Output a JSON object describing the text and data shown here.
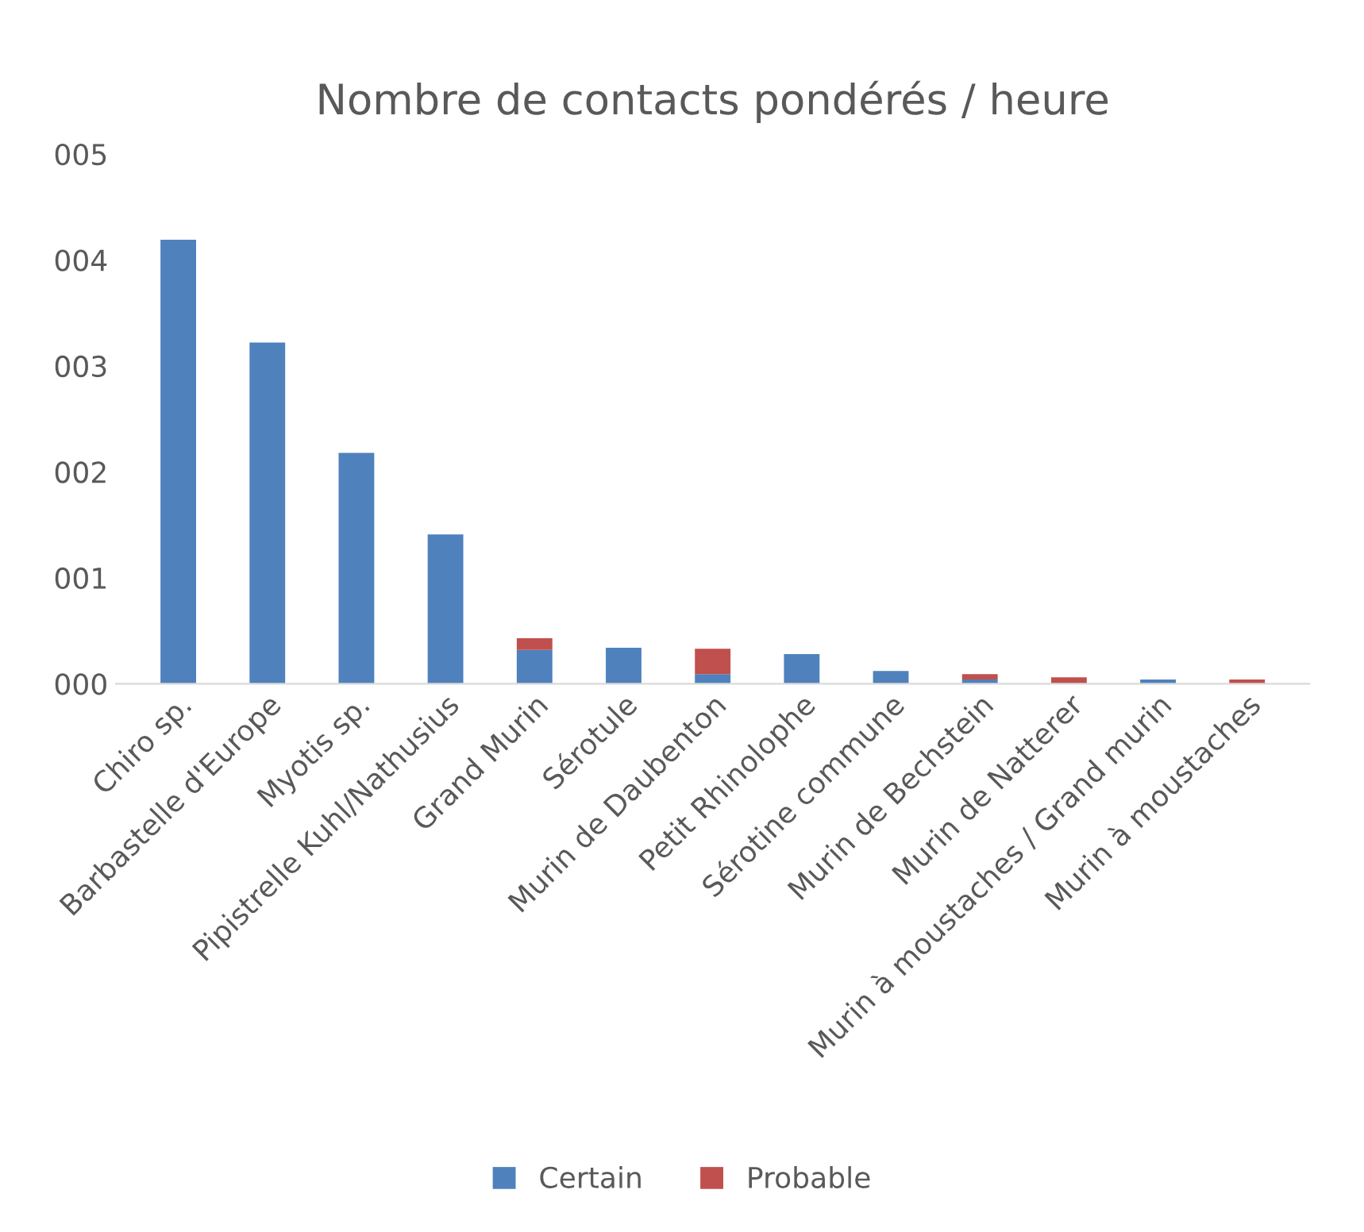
{
  "chart_data": {
    "type": "bar",
    "title": "Nombre de contacts pondérés / heure",
    "stacked": true,
    "categories": [
      "Chiro sp.",
      "Barbastelle d'Europe",
      "Myotis sp.",
      "Pipistrelle Kuhl/Nathusius",
      "Grand Murin",
      "Sérotule",
      "Murin de Daubenton",
      "Petit Rhinolophe",
      "Sérotine commune",
      "Murin de Bechstein",
      "Murin de Natterer",
      "Murin à moustaches / Grand murin",
      "Murin à moustaches"
    ],
    "series": [
      {
        "name": "Certain",
        "color": "#4f81bd",
        "values": [
          4.19,
          3.22,
          2.18,
          1.41,
          0.32,
          0.34,
          0.09,
          0.28,
          0.12,
          0.04,
          null,
          0.04,
          null
        ]
      },
      {
        "name": "Probable",
        "color": "#c0504d",
        "values": [
          null,
          null,
          null,
          null,
          0.11,
          null,
          0.24,
          null,
          null,
          0.05,
          0.06,
          null,
          0.04
        ]
      }
    ],
    "ylim": [
      0,
      5
    ],
    "yticks": [
      {
        "value": 0,
        "label": "000"
      },
      {
        "value": 1,
        "label": "001"
      },
      {
        "value": 2,
        "label": "002"
      },
      {
        "value": 3,
        "label": "003"
      },
      {
        "value": 4,
        "label": "004"
      },
      {
        "value": 5,
        "label": "005"
      }
    ],
    "grid": false,
    "legend": "bottom"
  }
}
